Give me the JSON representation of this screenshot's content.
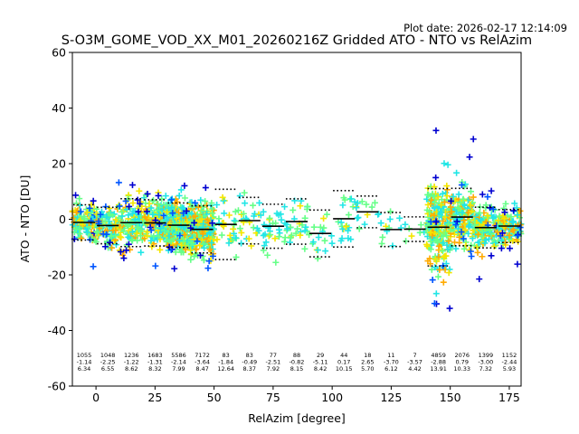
{
  "plot_date": "Plot date: 2026-02-17 12:14:09",
  "chart_data": {
    "type": "scatter",
    "title": "S-O3M_GOME_VOD_XX_M01_20260216Z Gridded ATO - NTO vs RelAzim",
    "xlabel": "RelAzim [degree]",
    "ylabel": "ATO - NTO [DU]",
    "xlim": [
      -10,
      180
    ],
    "ylim": [
      -60,
      60
    ],
    "xticks": [
      0,
      25,
      50,
      75,
      100,
      125,
      150,
      175
    ],
    "yticks": [
      -60,
      -40,
      -20,
      0,
      20,
      40,
      60
    ],
    "grid": false,
    "marker": "+",
    "colors": {
      "dark_blue": "#0000d0",
      "blue": "#0055ff",
      "cyan": "#22e6e6",
      "green": "#66ff88",
      "yellow": "#f4e600",
      "orange": "#ffaa00",
      "mean_line": "#000000"
    },
    "bins": [
      {
        "x0": -10,
        "x1": 0,
        "count": "1055",
        "mean": "-1.14",
        "std": "6.34"
      },
      {
        "x0": 0,
        "x1": 10,
        "count": "1048",
        "mean": "-2.25",
        "std": "6.55"
      },
      {
        "x0": 10,
        "x1": 20,
        "count": "1236",
        "mean": "-1.22",
        "std": "8.62"
      },
      {
        "x0": 20,
        "x1": 30,
        "count": "1683",
        "mean": "-1.31",
        "std": "8.32"
      },
      {
        "x0": 30,
        "x1": 40,
        "count": "5586",
        "mean": "-2.14",
        "std": "7.99"
      },
      {
        "x0": 40,
        "x1": 50,
        "count": "7172",
        "mean": "-3.64",
        "std": "8.47"
      },
      {
        "x0": 50,
        "x1": 60,
        "count": "83",
        "mean": "-1.84",
        "std": "12.64"
      },
      {
        "x0": 60,
        "x1": 70,
        "count": "83",
        "mean": "-0.49",
        "std": "8.37"
      },
      {
        "x0": 70,
        "x1": 80,
        "count": "77",
        "mean": "-2.51",
        "std": "7.92"
      },
      {
        "x0": 80,
        "x1": 90,
        "count": "88",
        "mean": "-0.82",
        "std": "8.15"
      },
      {
        "x0": 90,
        "x1": 100,
        "count": "29",
        "mean": "-5.11",
        "std": "8.42"
      },
      {
        "x0": 100,
        "x1": 110,
        "count": "44",
        "mean": "0.17",
        "std": "10.15"
      },
      {
        "x0": 110,
        "x1": 120,
        "count": "18",
        "mean": "2.65",
        "std": "5.70"
      },
      {
        "x0": 120,
        "x1": 130,
        "count": "11",
        "mean": "-3.70",
        "std": "6.12"
      },
      {
        "x0": 130,
        "x1": 140,
        "count": "7",
        "mean": "-3.57",
        "std": "4.42"
      },
      {
        "x0": 140,
        "x1": 150,
        "count": "4859",
        "mean": "-2.88",
        "std": "13.91"
      },
      {
        "x0": 150,
        "x1": 160,
        "count": "2076",
        "mean": "0.79",
        "std": "10.33"
      },
      {
        "x0": 160,
        "x1": 170,
        "count": "1399",
        "mean": "-3.00",
        "std": "7.32"
      },
      {
        "x0": 170,
        "x1": 180,
        "count": "1152",
        "mean": "-2.44",
        "std": "5.93"
      }
    ]
  }
}
